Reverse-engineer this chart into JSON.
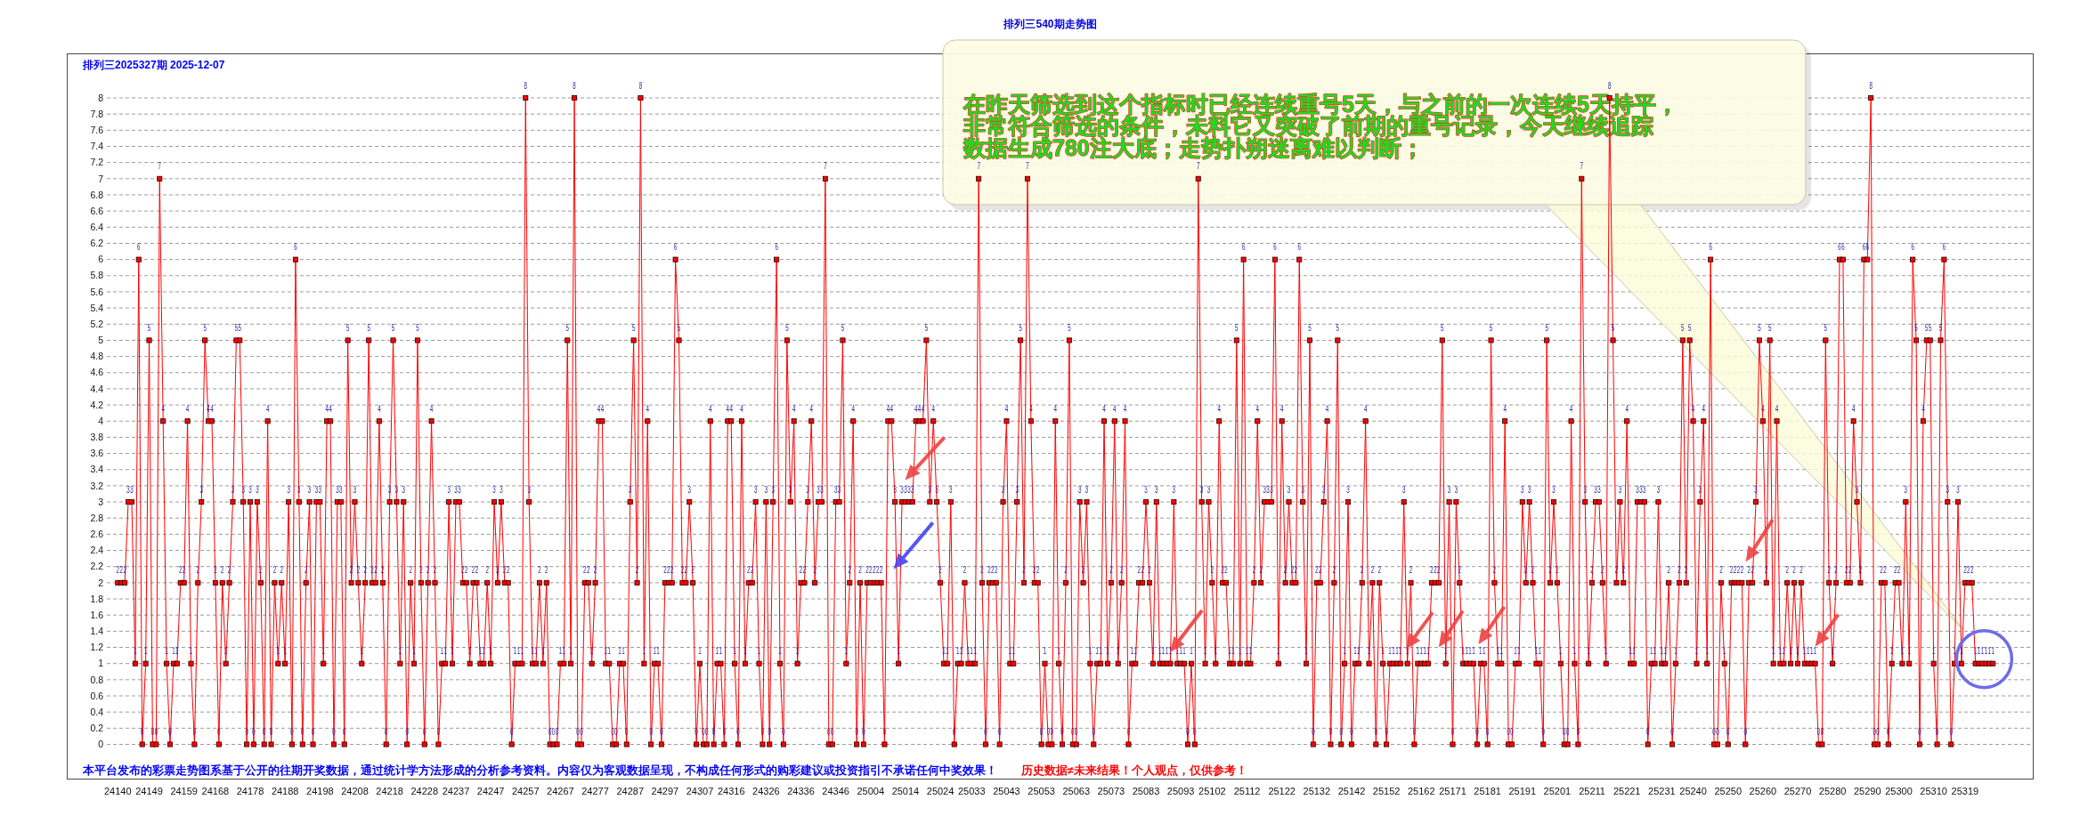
{
  "chart_data": {
    "type": "line",
    "title": "排列三540期走势图",
    "subtitle": "排列三2025327期  2025-12-07",
    "annotations": [
      "在昨天筛选到这个指标时已经连续重号5天，与之前的一次连续5天持平，非常符合筛选的条件，未料它又突破了前期的重号记录，今天继续追踪数据生成780注大底；走势扑朔迷离难以判断；",
      "本平台发布的彩票走势图系基于公开的往期开奖数据，通过统计学方法形成的分析参考资料。内容仅为客观数据呈现，不构成任何形式的购彩建议或投资指引不承诺任何中奖效果！",
      "历史数据≠未来结果！个人观点，仅供参考！"
    ],
    "categories": [
      "24140",
      null,
      null,
      null,
      null,
      null,
      null,
      null,
      null,
      "24149",
      null,
      null,
      null,
      null,
      null,
      null,
      null,
      null,
      null,
      "24159",
      null,
      null,
      null,
      null,
      null,
      null,
      null,
      null,
      "24168",
      null,
      null,
      null,
      null,
      null,
      null,
      null,
      null,
      null,
      "24178",
      null,
      null,
      null,
      null,
      null,
      null,
      null,
      null,
      null,
      "24188",
      null,
      null,
      null,
      null,
      null,
      null,
      null,
      null,
      null,
      "24198",
      null,
      null,
      null,
      null,
      null,
      null,
      null,
      null,
      null,
      "24208",
      null,
      null,
      null,
      null,
      null,
      null,
      null,
      null,
      null,
      "24218",
      null,
      null,
      null,
      null,
      null,
      null,
      null,
      null,
      null,
      "24228",
      null,
      null,
      null,
      null,
      null,
      null,
      null,
      null,
      "24237",
      null,
      null,
      null,
      null,
      null,
      null,
      null,
      null,
      null,
      "24247",
      null,
      null,
      null,
      null,
      null,
      null,
      null,
      null,
      null,
      "24257",
      null,
      null,
      null,
      null,
      null,
      null,
      null,
      null,
      null,
      "24267",
      null,
      null,
      null,
      null,
      null,
      null,
      null,
      null,
      null,
      "24277",
      null,
      null,
      null,
      null,
      null,
      null,
      null,
      null,
      null,
      "24287",
      null,
      null,
      null,
      null,
      null,
      null,
      null,
      null,
      null,
      "24297",
      null,
      null,
      null,
      null,
      null,
      null,
      null,
      null,
      null,
      "24307",
      null,
      null,
      null,
      null,
      null,
      null,
      null,
      null,
      "24316",
      null,
      null,
      null,
      null,
      null,
      null,
      null,
      null,
      null,
      "24326",
      null,
      null,
      null,
      null,
      null,
      null,
      null,
      null,
      null,
      "24336",
      null,
      null,
      null,
      null,
      null,
      null,
      null,
      null,
      null,
      "24346",
      null,
      null,
      null,
      null,
      null,
      null,
      null,
      null,
      null,
      "25004",
      null,
      null,
      null,
      null,
      null,
      null,
      null,
      null,
      null,
      "25014",
      null,
      null,
      null,
      null,
      null,
      null,
      null,
      null,
      null,
      "25024",
      null,
      null,
      null,
      null,
      null,
      null,
      null,
      null,
      "25033",
      null,
      null,
      null,
      null,
      null,
      null,
      null,
      null,
      null,
      "25043",
      null,
      null,
      null,
      null,
      null,
      null,
      null,
      null,
      null,
      "25053",
      null,
      null,
      null,
      null,
      null,
      null,
      null,
      null,
      null,
      "25063",
      null,
      null,
      null,
      null,
      null,
      null,
      null,
      null,
      null,
      "25073",
      null,
      null,
      null,
      null,
      null,
      null,
      null,
      null,
      null,
      "25083",
      null,
      null,
      null,
      null,
      null,
      null,
      null,
      null,
      null,
      "25093",
      null,
      null,
      null,
      null,
      null,
      null,
      null,
      null,
      "25102",
      null,
      null,
      null,
      null,
      null,
      null,
      null,
      null,
      null,
      "25112",
      null,
      null,
      null,
      null,
      null,
      null,
      null,
      null,
      null,
      "25122",
      null,
      null,
      null,
      null,
      null,
      null,
      null,
      null,
      null,
      "25132",
      null,
      null,
      null,
      null,
      null,
      null,
      null,
      null,
      null,
      "25142",
      null,
      null,
      null,
      null,
      null,
      null,
      null,
      null,
      null,
      "25152",
      null,
      null,
      null,
      null,
      null,
      null,
      null,
      null,
      null,
      "25162",
      null,
      null,
      null,
      null,
      null,
      null,
      null,
      null,
      "25171",
      null,
      null,
      null,
      null,
      null,
      null,
      null,
      null,
      null,
      "25181",
      null,
      null,
      null,
      null,
      null,
      null,
      null,
      null,
      null,
      "25191",
      null,
      null,
      null,
      null,
      null,
      null,
      null,
      null,
      null,
      "25201",
      null,
      null,
      null,
      null,
      null,
      null,
      null,
      null,
      null,
      "25211",
      null,
      null,
      null,
      null,
      null,
      null,
      null,
      null,
      null,
      "25221",
      null,
      null,
      null,
      null,
      null,
      null,
      null,
      null,
      null,
      "25231",
      null,
      null,
      null,
      null,
      null,
      null,
      null,
      null,
      "25240",
      null,
      null,
      null,
      null,
      null,
      null,
      null,
      null,
      null,
      "25250",
      null,
      null,
      null,
      null,
      null,
      null,
      null,
      null,
      null,
      "25260",
      null,
      null,
      null,
      null,
      null,
      null,
      null,
      null,
      null,
      "25270",
      null,
      null,
      null,
      null,
      null,
      null,
      null,
      null,
      null,
      "25280",
      null,
      null,
      null,
      null,
      null,
      null,
      null,
      null,
      null,
      "25290",
      null,
      null,
      null,
      null,
      null,
      null,
      null,
      null,
      "25300",
      null,
      null,
      null,
      null,
      null,
      null,
      null,
      null,
      null,
      "25310",
      null,
      null,
      null,
      null,
      null,
      null,
      null,
      null,
      "25319",
      null,
      null,
      null,
      null,
      null,
      null,
      null,
      null
    ],
    "series": [
      {
        "color": "#ff0000",
        "values": [
          2,
          2,
          2,
          3,
          3,
          1,
          6,
          0,
          1,
          5,
          0,
          0,
          7,
          4,
          1,
          0,
          1,
          1,
          2,
          2,
          4,
          1,
          0,
          2,
          3,
          5,
          4,
          4,
          2,
          0,
          2,
          1,
          2,
          3,
          5,
          5,
          3,
          0,
          3,
          0,
          3,
          2,
          0,
          4,
          0,
          2,
          1,
          2,
          1,
          3,
          0,
          6,
          3,
          0,
          2,
          3,
          0,
          3,
          3,
          1,
          4,
          4,
          0,
          3,
          3,
          0,
          5,
          2,
          3,
          2,
          1,
          2,
          5,
          2,
          2,
          4,
          2,
          0,
          3,
          5,
          3,
          1,
          3,
          0,
          2,
          1,
          5,
          2,
          0,
          2,
          4,
          2,
          0,
          1,
          1,
          3,
          1,
          3,
          3,
          2,
          2,
          1,
          2,
          2,
          1,
          1,
          2,
          1,
          3,
          2,
          3,
          2,
          2,
          0,
          1,
          1,
          1,
          8,
          3,
          1,
          1,
          2,
          1,
          2,
          0,
          0,
          0,
          1,
          1,
          5,
          1,
          8,
          0,
          0,
          2,
          2,
          1,
          2,
          4,
          4,
          1,
          1,
          0,
          0,
          1,
          1,
          0,
          3,
          5,
          2,
          8,
          1,
          4,
          0,
          1,
          1,
          0,
          2,
          2,
          2,
          6,
          5,
          2,
          2,
          3,
          2,
          0,
          1,
          0,
          0,
          4,
          0,
          1,
          1,
          0,
          4,
          4,
          1,
          0,
          4,
          1,
          2,
          2,
          3,
          1,
          0,
          3,
          0,
          3,
          6,
          1,
          0,
          5,
          3,
          4,
          1,
          2,
          2,
          3,
          4,
          2,
          3,
          3,
          7,
          0,
          0,
          3,
          3,
          5,
          1,
          2,
          4,
          0,
          2,
          0,
          2,
          2,
          2,
          2,
          2,
          0,
          4,
          4,
          3,
          1,
          3,
          3,
          3,
          3,
          4,
          4,
          4,
          5,
          3,
          4,
          3,
          2,
          1,
          1,
          3,
          0,
          1,
          1,
          2,
          1,
          1,
          1,
          7,
          2,
          0,
          2,
          2,
          2,
          0,
          3,
          4,
          1,
          1,
          3,
          5,
          2,
          7,
          4,
          2,
          2,
          0,
          1,
          0,
          0,
          4,
          1,
          0,
          2,
          5,
          0,
          0,
          3,
          2,
          3,
          1,
          0,
          1,
          1,
          4,
          1,
          2,
          4,
          1,
          2,
          4,
          0,
          1,
          1,
          2,
          2,
          3,
          2,
          1,
          3,
          1,
          1,
          1,
          1,
          3,
          1,
          1,
          1,
          0,
          1,
          0,
          7,
          3,
          1,
          3,
          2,
          1,
          4,
          2,
          2,
          1,
          1,
          5,
          1,
          6,
          1,
          1,
          2,
          4,
          2,
          3,
          3,
          3,
          6,
          1,
          4,
          2,
          3,
          2,
          2,
          6,
          3,
          1,
          5,
          0,
          2,
          2,
          3,
          4,
          0,
          2,
          5,
          0,
          1,
          3,
          0,
          1,
          1,
          2,
          4,
          1,
          2,
          0,
          2,
          1,
          0,
          1,
          1,
          1,
          1,
          3,
          1,
          2,
          0,
          1,
          1,
          1,
          1,
          2,
          2,
          2,
          5,
          1,
          3,
          0,
          3,
          2,
          1,
          1,
          1,
          1,
          0,
          1,
          1,
          0,
          5,
          2,
          1,
          1,
          4,
          0,
          0,
          1,
          1,
          3,
          2,
          3,
          2,
          1,
          1,
          0,
          5,
          2,
          3,
          2,
          1,
          0,
          0,
          4,
          1,
          0,
          7,
          3,
          1,
          2,
          3,
          3,
          2,
          1,
          8,
          5,
          2,
          3,
          2,
          4,
          1,
          1,
          3,
          3,
          3,
          0,
          1,
          1,
          3,
          1,
          1,
          2,
          0,
          1,
          2,
          5,
          2,
          5,
          4,
          1,
          3,
          4,
          1,
          6,
          0,
          0,
          2,
          1,
          0,
          2,
          2,
          2,
          2,
          0,
          2,
          2,
          3,
          5,
          4,
          2,
          5,
          1,
          4,
          1,
          1,
          2,
          1,
          2,
          1,
          2,
          1,
          1,
          1,
          1,
          0,
          0,
          5,
          2,
          1,
          2,
          6,
          6,
          2,
          2,
          4,
          3,
          2,
          6,
          6,
          8,
          0,
          0,
          2,
          2,
          0,
          1,
          2,
          2,
          1,
          3,
          1,
          6,
          5,
          0,
          4,
          5,
          5,
          1,
          0,
          5,
          6,
          3,
          0,
          1,
          3,
          1,
          2,
          2,
          2,
          1,
          1,
          1,
          1,
          1,
          1
        ]
      }
    ],
    "ylim": [
      0,
      8
    ],
    "yticks": [
      0,
      0.2,
      0.4,
      0.6,
      0.8,
      1,
      1.2,
      1.4,
      1.6,
      1.8,
      2,
      2.2,
      2.4,
      2.6,
      2.8,
      3,
      3.2,
      3.4,
      3.6,
      3.8,
      4,
      4.2,
      4.4,
      4.6,
      4.8,
      5,
      5.2,
      5.4,
      5.6,
      5.8,
      6,
      6.2,
      6.4,
      6.6,
      6.8,
      7,
      7.2,
      7.4,
      7.6,
      7.8,
      8
    ],
    "grid": "y",
    "marker": "square",
    "data_labels": true
  }
}
